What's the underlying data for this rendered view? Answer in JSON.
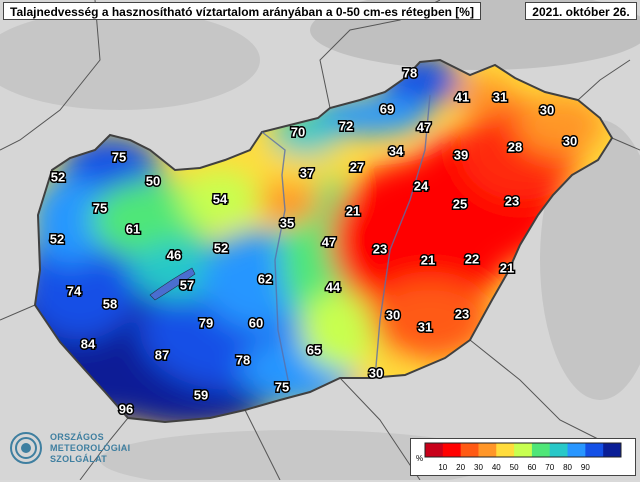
{
  "header": {
    "title": "Talajnedvesség a hasznosítható víztartalom arányában a 0-50 cm-es rétegben [%]",
    "date": "2021. október 26."
  },
  "logo": {
    "line1": "ORSZÁGOS",
    "line2": "METEOROLÓGIAI",
    "line3": "SZOLGÁLAT",
    "color": "#3f7fa0"
  },
  "legend": {
    "unit": "%",
    "ticks": [
      "10",
      "20",
      "30",
      "40",
      "50",
      "60",
      "70",
      "80",
      "90"
    ],
    "colors": [
      "#c8001a",
      "#ff0000",
      "#ff5a14",
      "#ff9628",
      "#ffdc3c",
      "#c8ff50",
      "#50e678",
      "#28c8c8",
      "#2896ff",
      "#1450e6",
      "#0a1e96"
    ]
  },
  "station_values": [
    {
      "label": "78"
    },
    {
      "label": "69"
    },
    {
      "label": "41"
    },
    {
      "label": "31"
    },
    {
      "label": "30"
    },
    {
      "label": "70"
    },
    {
      "label": "72"
    },
    {
      "label": "47"
    },
    {
      "label": "30"
    },
    {
      "label": "28"
    },
    {
      "label": "75"
    },
    {
      "label": "34"
    },
    {
      "label": "39"
    },
    {
      "label": "37"
    },
    {
      "label": "27"
    },
    {
      "label": "52"
    },
    {
      "label": "50"
    },
    {
      "label": "24"
    },
    {
      "label": "54"
    },
    {
      "label": "25"
    },
    {
      "label": "23"
    },
    {
      "label": "75"
    },
    {
      "label": "21"
    },
    {
      "label": "35"
    },
    {
      "label": "61"
    },
    {
      "label": "52"
    },
    {
      "label": "47"
    },
    {
      "label": "23"
    },
    {
      "label": "52"
    },
    {
      "label": "46"
    },
    {
      "label": "21"
    },
    {
      "label": "22"
    },
    {
      "label": "21"
    },
    {
      "label": "57"
    },
    {
      "label": "62"
    },
    {
      "label": "74"
    },
    {
      "label": "44"
    },
    {
      "label": "58"
    },
    {
      "label": "30"
    },
    {
      "label": "23"
    },
    {
      "label": "79"
    },
    {
      "label": "60"
    },
    {
      "label": "31"
    },
    {
      "label": "84"
    },
    {
      "label": "65"
    },
    {
      "label": "87"
    },
    {
      "label": "78"
    },
    {
      "label": "30"
    },
    {
      "label": "75"
    },
    {
      "label": "59"
    },
    {
      "label": "96"
    }
  ]
}
